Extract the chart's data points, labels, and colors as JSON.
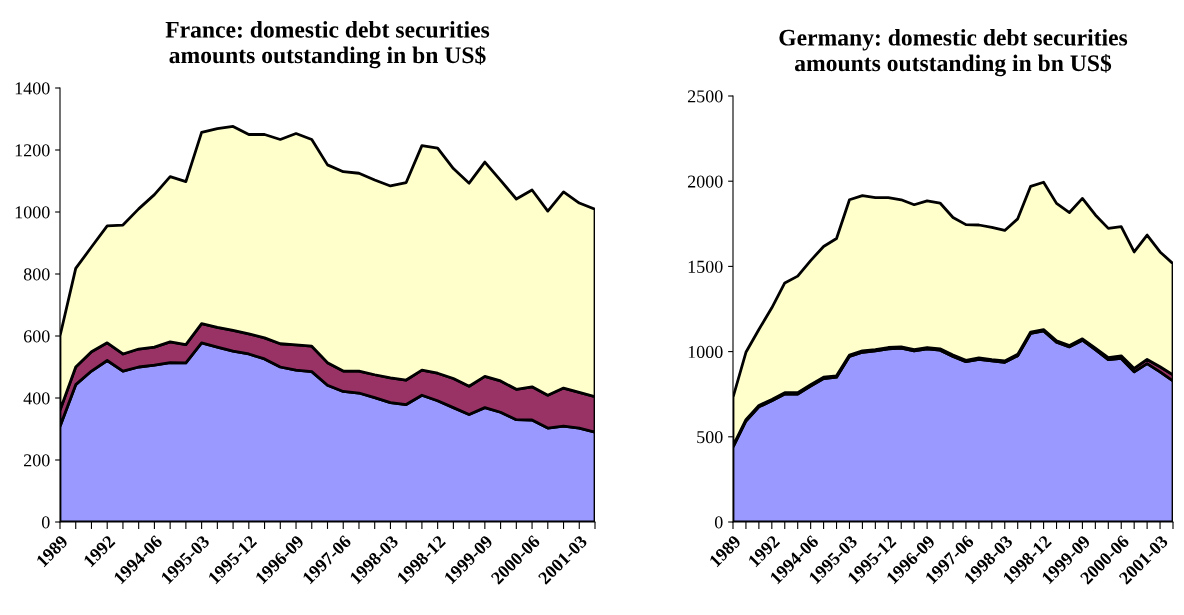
{
  "chart_data": [
    {
      "type": "area",
      "stacked": true,
      "title": "France: domestic debt securities\namounts outstanding in bn US$",
      "categories": [
        "1989",
        null,
        null,
        "1992",
        null,
        null,
        "1994-06",
        null,
        null,
        "1995-03",
        null,
        null,
        "1995-12",
        null,
        null,
        "1996-09",
        null,
        null,
        "1997-06",
        null,
        null,
        "1998-03",
        null,
        null,
        "1998-12",
        null,
        null,
        "1999-09",
        null,
        null,
        "2000-06",
        null,
        null,
        "2001-03",
        null
      ],
      "ylim": [
        0,
        1400
      ],
      "yticks": [
        0,
        200,
        400,
        600,
        800,
        1000,
        1200,
        1400
      ],
      "grid": false,
      "legend": false,
      "series": [
        {
          "color": "#9999ff",
          "values": [
            308,
            443,
            487,
            521,
            487,
            500,
            506,
            514,
            513,
            578,
            564,
            551,
            542,
            526,
            500,
            490,
            485,
            441,
            421,
            416,
            401,
            385,
            379,
            409,
            391,
            369,
            347,
            369,
            354,
            330,
            329,
            303,
            309,
            303,
            290
          ]
        },
        {
          "color": "#993366",
          "values": [
            52,
            57,
            62,
            57,
            55,
            58,
            58,
            67,
            59,
            62,
            64,
            67,
            65,
            68,
            75,
            81,
            82,
            73,
            66,
            71,
            74,
            80,
            79,
            81,
            89,
            94,
            91,
            101,
            101,
            98,
            107,
            106,
            123,
            115,
            114
          ]
        },
        {
          "color": "#ffffcc",
          "values": [
            240,
            318,
            338,
            377,
            416,
            452,
            492,
            533,
            526,
            617,
            641,
            658,
            643,
            656,
            659,
            682,
            667,
            638,
            643,
            638,
            628,
            619,
            637,
            724,
            726,
            677,
            655,
            691,
            647,
            614,
            635,
            594,
            633,
            611,
            605
          ]
        }
      ]
    },
    {
      "type": "area",
      "stacked": true,
      "title": "Germany: domestic debt securities\namounts outstanding in bn US$",
      "categories": [
        "1989",
        null,
        null,
        "1992",
        null,
        null,
        "1994-06",
        null,
        null,
        "1995-03",
        null,
        null,
        "1995-12",
        null,
        null,
        "1996-09",
        null,
        null,
        "1997-06",
        null,
        null,
        "1998-03",
        null,
        null,
        "1998-12",
        null,
        null,
        "1999-09",
        null,
        null,
        "2000-06",
        null,
        null,
        "2001-03",
        null
      ],
      "ylim": [
        0,
        2500
      ],
      "yticks": [
        0,
        500,
        1000,
        1500,
        2000,
        2500
      ],
      "grid": false,
      "legend": false,
      "series": [
        {
          "color": "#9999ff",
          "values": [
            439,
            593,
            676,
            711,
            751,
            751,
            798,
            842,
            850,
            972,
            996,
            1004,
            1016,
            1020,
            1004,
            1016,
            1008,
            972,
            941,
            955,
            945,
            937,
            976,
            1107,
            1121,
            1055,
            1028,
            1067,
            1012,
            953,
            960,
            881,
            929,
            881,
            828
          ]
        },
        {
          "color": "#993366",
          "values": [
            8,
            8,
            8,
            8,
            8,
            8,
            8,
            8,
            8,
            8,
            8,
            8,
            8,
            8,
            8,
            8,
            8,
            8,
            8,
            8,
            8,
            8,
            8,
            8,
            8,
            8,
            8,
            8,
            8,
            12,
            15,
            20,
            25,
            30,
            35
          ]
        },
        {
          "color": "#ffffcc",
          "values": [
            284,
            395,
            446,
            538,
            644,
            684,
            728,
            767,
            806,
            911,
            911,
            891,
            879,
            863,
            850,
            861,
            856,
            807,
            796,
            780,
            776,
            766,
            795,
            855,
            865,
            807,
            780,
            824,
            782,
            758,
            758,
            684,
            730,
            674,
            653
          ]
        }
      ]
    }
  ]
}
